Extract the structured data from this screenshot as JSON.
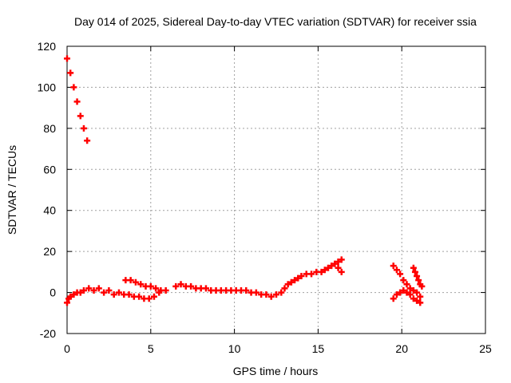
{
  "chart_data": {
    "type": "scatter",
    "title": "Day 014 of 2025, Sidereal Day-to-day VTEC variation (SDTVAR) for receiver ssia",
    "xlabel": "GPS time / hours",
    "ylabel": "SDTVAR / TECUs",
    "xlim": [
      0,
      25
    ],
    "ylim": [
      -20,
      120
    ],
    "xticks": [
      0,
      5,
      10,
      15,
      20,
      25
    ],
    "yticks": [
      -20,
      0,
      20,
      40,
      60,
      80,
      100,
      120
    ],
    "grid": true,
    "series_color": "#ff0000",
    "series": [
      {
        "points": [
          {
            "x": 0.0,
            "y": 114
          },
          {
            "x": 0.2,
            "y": 107
          },
          {
            "x": 0.4,
            "y": 100
          },
          {
            "x": 0.6,
            "y": 93
          },
          {
            "x": 0.8,
            "y": 86
          },
          {
            "x": 1.0,
            "y": 80
          },
          {
            "x": 1.2,
            "y": 74
          },
          {
            "x": 0.0,
            "y": -5
          },
          {
            "x": 0.1,
            "y": -3
          },
          {
            "x": 0.2,
            "y": -2
          },
          {
            "x": 0.4,
            "y": -1
          },
          {
            "x": 0.6,
            "y": 0
          },
          {
            "x": 0.8,
            "y": 0
          },
          {
            "x": 1.0,
            "y": 1
          },
          {
            "x": 1.3,
            "y": 2
          },
          {
            "x": 1.6,
            "y": 1
          },
          {
            "x": 1.9,
            "y": 2
          },
          {
            "x": 2.2,
            "y": 0
          },
          {
            "x": 2.5,
            "y": 1
          },
          {
            "x": 2.8,
            "y": -1
          },
          {
            "x": 3.1,
            "y": 0
          },
          {
            "x": 3.4,
            "y": -1
          },
          {
            "x": 3.7,
            "y": -1
          },
          {
            "x": 4.0,
            "y": -2
          },
          {
            "x": 4.3,
            "y": -2
          },
          {
            "x": 4.6,
            "y": -3
          },
          {
            "x": 4.9,
            "y": -3
          },
          {
            "x": 5.2,
            "y": -2
          },
          {
            "x": 5.5,
            "y": 0
          },
          {
            "x": 3.5,
            "y": 6
          },
          {
            "x": 3.8,
            "y": 6
          },
          {
            "x": 4.1,
            "y": 5
          },
          {
            "x": 4.4,
            "y": 4
          },
          {
            "x": 4.7,
            "y": 3
          },
          {
            "x": 5.0,
            "y": 3
          },
          {
            "x": 5.3,
            "y": 2
          },
          {
            "x": 5.6,
            "y": 1
          },
          {
            "x": 5.9,
            "y": 1
          },
          {
            "x": 6.5,
            "y": 3
          },
          {
            "x": 6.8,
            "y": 4
          },
          {
            "x": 7.1,
            "y": 3
          },
          {
            "x": 7.4,
            "y": 3
          },
          {
            "x": 7.7,
            "y": 2
          },
          {
            "x": 8.0,
            "y": 2
          },
          {
            "x": 8.3,
            "y": 2
          },
          {
            "x": 8.6,
            "y": 1
          },
          {
            "x": 8.9,
            "y": 1
          },
          {
            "x": 9.2,
            "y": 1
          },
          {
            "x": 9.5,
            "y": 1
          },
          {
            "x": 9.8,
            "y": 1
          },
          {
            "x": 10.1,
            "y": 1
          },
          {
            "x": 10.4,
            "y": 1
          },
          {
            "x": 10.7,
            "y": 1
          },
          {
            "x": 11.0,
            "y": 0
          },
          {
            "x": 11.3,
            "y": 0
          },
          {
            "x": 11.6,
            "y": -1
          },
          {
            "x": 11.9,
            "y": -1
          },
          {
            "x": 12.2,
            "y": -2
          },
          {
            "x": 12.5,
            "y": -1
          },
          {
            "x": 12.8,
            "y": 0
          },
          {
            "x": 13.0,
            "y": 2
          },
          {
            "x": 13.2,
            "y": 4
          },
          {
            "x": 13.4,
            "y": 5
          },
          {
            "x": 13.6,
            "y": 6
          },
          {
            "x": 13.8,
            "y": 7
          },
          {
            "x": 14.0,
            "y": 8
          },
          {
            "x": 14.3,
            "y": 9
          },
          {
            "x": 14.6,
            "y": 9
          },
          {
            "x": 14.9,
            "y": 10
          },
          {
            "x": 15.2,
            "y": 10
          },
          {
            "x": 15.4,
            "y": 11
          },
          {
            "x": 15.6,
            "y": 12
          },
          {
            "x": 15.8,
            "y": 13
          },
          {
            "x": 16.0,
            "y": 14
          },
          {
            "x": 16.2,
            "y": 15
          },
          {
            "x": 16.4,
            "y": 16
          },
          {
            "x": 16.2,
            "y": 12
          },
          {
            "x": 16.4,
            "y": 10
          },
          {
            "x": 19.5,
            "y": 13
          },
          {
            "x": 19.7,
            "y": 11
          },
          {
            "x": 19.9,
            "y": 9
          },
          {
            "x": 20.1,
            "y": 6
          },
          {
            "x": 20.3,
            "y": 4
          },
          {
            "x": 20.5,
            "y": 2
          },
          {
            "x": 20.7,
            "y": 1
          },
          {
            "x": 20.9,
            "y": 0
          },
          {
            "x": 21.1,
            "y": -2
          },
          {
            "x": 21.1,
            "y": -5
          },
          {
            "x": 19.5,
            "y": -3
          },
          {
            "x": 19.7,
            "y": -1
          },
          {
            "x": 19.9,
            "y": 0
          },
          {
            "x": 20.1,
            "y": 1
          },
          {
            "x": 20.3,
            "y": 0
          },
          {
            "x": 20.5,
            "y": -1
          },
          {
            "x": 20.7,
            "y": -3
          },
          {
            "x": 20.9,
            "y": -4
          },
          {
            "x": 20.7,
            "y": 12
          },
          {
            "x": 20.8,
            "y": 10
          },
          {
            "x": 20.9,
            "y": 8
          },
          {
            "x": 21.0,
            "y": 6
          },
          {
            "x": 21.1,
            "y": 4
          },
          {
            "x": 21.2,
            "y": 3
          }
        ]
      }
    ]
  }
}
